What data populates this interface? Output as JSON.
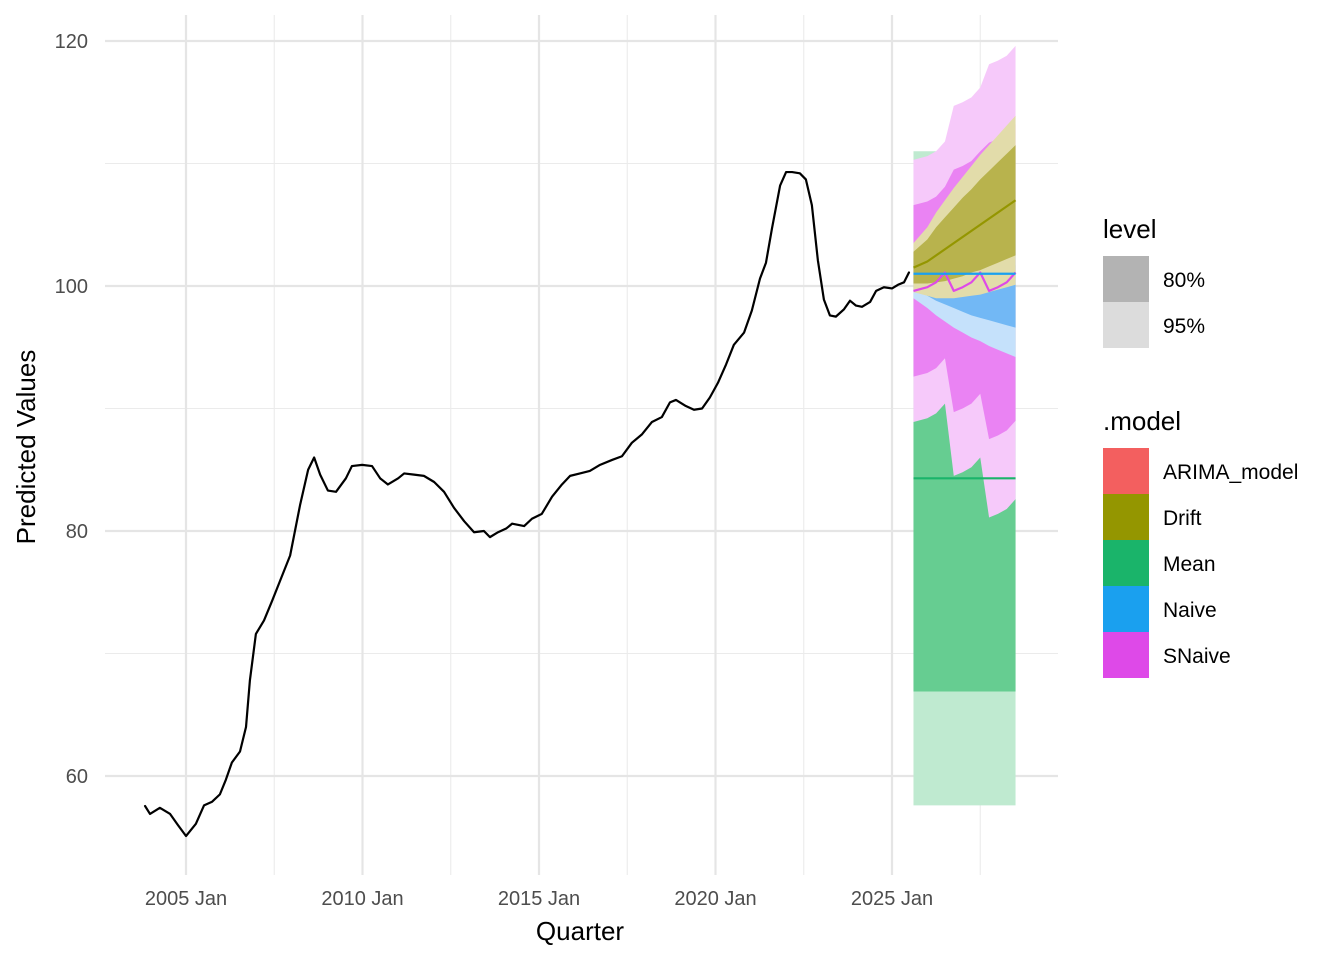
{
  "chart_data": {
    "type": "line",
    "title": "",
    "xlabel": "Quarter",
    "ylabel": "Predicted Values",
    "ylim": [
      52.5,
      121.5
    ],
    "xlim": [
      2002.7,
      2029.8
    ],
    "grid": true,
    "y_ticks": [
      60,
      80,
      100,
      120
    ],
    "y_tick_labels": [
      "60",
      "80",
      "100",
      "120"
    ],
    "x_ticks": [
      2005,
      2010,
      2015,
      2020,
      2025
    ],
    "x_tick_labels": [
      "2005 Jan",
      "2010 Jan",
      "2015 Jan",
      "2020 Jan",
      "2025 Jan"
    ],
    "history": {
      "x": [
        2003.84,
        2003.98,
        2004.26,
        2004.55,
        2004.77,
        2005.0,
        2005.28,
        2005.51,
        2005.74,
        2005.96,
        2006.13,
        2006.3,
        2006.53,
        2006.7,
        2006.81,
        2006.98,
        2007.21,
        2007.44,
        2007.66,
        2007.95,
        2008.23,
        2008.46,
        2008.63,
        2008.8,
        2009.02,
        2009.25,
        2009.53,
        2009.7,
        2009.99,
        2010.27,
        2010.5,
        2010.72,
        2011.01,
        2011.18,
        2011.46,
        2011.74,
        2012.03,
        2012.31,
        2012.59,
        2012.88,
        2013.16,
        2013.44,
        2013.61,
        2013.84,
        2014.07,
        2014.24,
        2014.58,
        2014.8,
        2015.08,
        2015.37,
        2015.65,
        2015.88,
        2016.16,
        2016.44,
        2016.73,
        2017.07,
        2017.35,
        2017.63,
        2017.92,
        2018.2,
        2018.48,
        2018.71,
        2018.88,
        2019.16,
        2019.39,
        2019.62,
        2019.84,
        2020.07,
        2020.3,
        2020.52,
        2020.81,
        2021.03,
        2021.26,
        2021.43,
        2021.6,
        2021.83,
        2022.0,
        2022.17,
        2022.39,
        2022.56,
        2022.73,
        2022.9,
        2023.07,
        2023.24,
        2023.41,
        2023.64,
        2023.81,
        2023.98,
        2024.15,
        2024.38,
        2024.55,
        2024.77,
        2025.0,
        2025.17,
        2025.34,
        2025.48
      ],
      "y": [
        57.55,
        56.9,
        57.4,
        56.9,
        56.0,
        55.1,
        56.1,
        57.6,
        57.9,
        58.5,
        59.7,
        61.1,
        62.0,
        64.0,
        67.8,
        71.6,
        72.7,
        74.3,
        75.9,
        78.0,
        82.1,
        85.0,
        86.0,
        84.6,
        83.3,
        83.2,
        84.3,
        85.3,
        85.4,
        85.3,
        84.3,
        83.8,
        84.3,
        84.7,
        84.6,
        84.5,
        84.0,
        83.2,
        81.9,
        80.8,
        79.9,
        80.0,
        79.5,
        79.9,
        80.2,
        80.6,
        80.4,
        81.0,
        81.4,
        82.8,
        83.8,
        84.5,
        84.7,
        84.9,
        85.4,
        85.8,
        86.1,
        87.2,
        87.9,
        88.9,
        89.3,
        90.5,
        90.7,
        90.2,
        89.9,
        90.0,
        90.9,
        92.1,
        93.6,
        95.2,
        96.2,
        98.0,
        100.6,
        101.9,
        104.7,
        108.2,
        109.3,
        109.3,
        109.2,
        108.7,
        106.6,
        102.1,
        98.9,
        97.6,
        97.5,
        98.1,
        98.8,
        98.4,
        98.3,
        98.7,
        99.6,
        99.9,
        99.8,
        100.1,
        100.3,
        101.1
      ]
    },
    "forecast_x": [
      2025.75,
      2026.0,
      2026.25,
      2026.5,
      2026.75,
      2027.0,
      2027.25,
      2027.5,
      2027.75,
      2028.0,
      2028.25,
      2028.5
    ],
    "forecasts": [
      {
        "model": "Mean",
        "color": "#1ab46a",
        "fill80": "#66cd91",
        "fill95": "#bfead0",
        "mean": [
          84.3,
          84.3,
          84.3,
          84.3,
          84.3,
          84.3,
          84.3,
          84.3,
          84.3,
          84.3,
          84.3,
          84.3
        ],
        "lo80": [
          66.9,
          66.9,
          66.9,
          66.9,
          66.9,
          66.9,
          66.9,
          66.9,
          66.9,
          66.9,
          66.9,
          66.9
        ],
        "hi80": [
          101.7,
          101.7,
          101.7,
          101.7,
          101.7,
          101.7,
          101.7,
          101.7,
          101.7,
          101.7,
          101.7,
          101.7
        ],
        "lo95": [
          57.6,
          57.6,
          57.6,
          57.6,
          57.6,
          57.6,
          57.6,
          57.6,
          57.6,
          57.6,
          57.6,
          57.6
        ],
        "hi95": [
          111.0,
          111.0,
          111.0,
          111.0,
          111.0,
          111.0,
          111.0,
          111.0,
          111.0,
          111.0,
          111.0,
          111.0
        ]
      },
      {
        "model": "SNaive",
        "color": "#de49e8",
        "fill80": "#ea83f3",
        "fill95": "#f6c9fa",
        "mean": [
          99.6,
          99.9,
          100.3,
          101.1,
          99.6,
          99.9,
          100.3,
          101.1,
          99.6,
          99.9,
          100.3,
          101.1
        ],
        "lo80": [
          92.6,
          92.9,
          93.3,
          94.1,
          89.7,
          90.0,
          90.4,
          91.2,
          87.5,
          87.8,
          88.2,
          89.0
        ],
        "hi80": [
          106.6,
          106.9,
          107.3,
          108.1,
          109.5,
          109.8,
          110.2,
          111.0,
          111.7,
          112.0,
          112.4,
          113.2
        ],
        "lo95": [
          88.9,
          89.2,
          89.6,
          90.4,
          84.5,
          84.8,
          85.2,
          86.0,
          81.1,
          81.4,
          81.8,
          82.6
        ],
        "hi95": [
          110.3,
          110.6,
          111.0,
          111.8,
          114.7,
          115.0,
          115.4,
          116.2,
          118.1,
          118.4,
          118.8,
          119.6
        ]
      },
      {
        "model": "Naive",
        "color": "#1aa0ef",
        "fill80": "#72b8f5",
        "fill95": "#c5e1fb",
        "mean": [
          101.0,
          101.0,
          101.0,
          101.0,
          101.0,
          101.0,
          101.0,
          101.0,
          101.0,
          101.0,
          101.0,
          101.0
        ],
        "lo80": [
          99.7,
          99.2,
          98.8,
          98.5,
          98.2,
          97.9,
          97.6,
          97.4,
          97.2,
          97.0,
          96.8,
          96.6
        ],
        "hi80": [
          102.3,
          102.8,
          103.2,
          103.5,
          103.8,
          104.1,
          104.4,
          104.6,
          104.8,
          105.0,
          105.2,
          105.4
        ],
        "lo95": [
          99.0,
          98.2,
          97.6,
          97.1,
          96.6,
          96.2,
          95.8,
          95.5,
          95.1,
          94.8,
          94.5,
          94.2
        ],
        "hi95": [
          103.0,
          103.8,
          104.4,
          104.9,
          105.4,
          105.8,
          106.2,
          106.5,
          106.9,
          107.2,
          107.5,
          107.8
        ]
      },
      {
        "model": "Drift",
        "color": "#949600",
        "fill80": "#b8b34d",
        "fill95": "#e2dcaa",
        "mean": [
          101.5,
          102.0,
          102.5,
          103.0,
          103.5,
          104.0,
          104.5,
          105.0,
          105.5,
          106.0,
          106.5,
          107.0
        ],
        "lo80": [
          100.2,
          100.2,
          100.3,
          100.4,
          100.6,
          100.8,
          101.1,
          101.3,
          101.6,
          101.9,
          102.2,
          102.5
        ],
        "hi80": [
          102.8,
          103.8,
          104.8,
          105.6,
          106.4,
          107.2,
          107.9,
          108.7,
          109.4,
          110.1,
          110.8,
          111.5
        ],
        "lo95": [
          99.5,
          99.2,
          99.0,
          99.0,
          99.0,
          99.1,
          99.2,
          99.3,
          99.5,
          99.7,
          99.9,
          100.1
        ],
        "hi95": [
          103.5,
          104.8,
          106.0,
          107.0,
          108.0,
          108.9,
          109.8,
          110.7,
          111.5,
          112.3,
          113.1,
          113.9
        ]
      }
    ],
    "legend": {
      "placement": "right",
      "level_title": "level",
      "levels": [
        {
          "label": "80%",
          "color": "#b3b3b3"
        },
        {
          "label": "95%",
          "color": "#dcdcdc"
        }
      ],
      "model_title": ".model",
      "models": [
        {
          "label": "ARIMA_model",
          "color": "#f35f5f"
        },
        {
          "label": "Drift",
          "color": "#949600"
        },
        {
          "label": "Mean",
          "color": "#1ab46a"
        },
        {
          "label": "Naive",
          "color": "#1aa0ef"
        },
        {
          "label": "SNaive",
          "color": "#de49e8"
        }
      ]
    }
  }
}
